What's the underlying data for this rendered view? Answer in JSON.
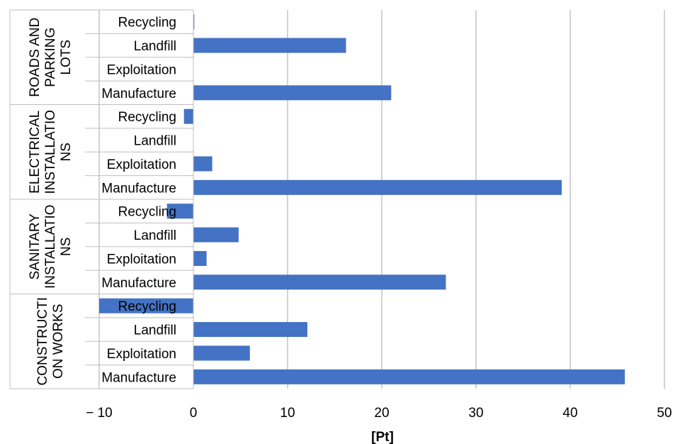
{
  "chart_data": {
    "type": "bar",
    "orientation": "horizontal",
    "xlabel": "[Pt]",
    "ylabel": "",
    "xlim": [
      -10,
      50
    ],
    "x_ticks": [
      -10,
      0,
      10,
      20,
      30,
      40,
      50
    ],
    "x_tick_labels": [
      "− 10",
      "0",
      "10",
      "20",
      "30",
      "40",
      "50"
    ],
    "grid": "vertical",
    "legend": "none",
    "bar_color": "#4472C4",
    "groups": [
      {
        "label_lines": [
          "ROADS AND",
          "PARKING",
          "LOTS"
        ],
        "bars": [
          {
            "category": "Recycling",
            "value": 0.1
          },
          {
            "category": "Landfill",
            "value": 16.2
          },
          {
            "category": "Exploitation",
            "value": 0
          },
          {
            "category": "Manufacture",
            "value": 21.0
          }
        ]
      },
      {
        "label_lines": [
          "ELECTRICAL",
          "INSTALLATIO",
          "NS"
        ],
        "bars": [
          {
            "category": "Recycling",
            "value": -1.0
          },
          {
            "category": "Landfill",
            "value": 0
          },
          {
            "category": "Exploitation",
            "value": 2.0
          },
          {
            "category": "Manufacture",
            "value": 39.1
          }
        ]
      },
      {
        "label_lines": [
          "SANITARY",
          "INSTALLATIO",
          "NS"
        ],
        "bars": [
          {
            "category": "Recycling",
            "value": -2.8
          },
          {
            "category": "Landfill",
            "value": 4.8
          },
          {
            "category": "Exploitation",
            "value": 1.4
          },
          {
            "category": "Manufacture",
            "value": 26.8
          }
        ]
      },
      {
        "label_lines": [
          "CONSTRUCTI",
          "ON WORKS"
        ],
        "bars": [
          {
            "category": "Recycling",
            "value": -10.0
          },
          {
            "category": "Landfill",
            "value": 12.1
          },
          {
            "category": "Exploitation",
            "value": 6.0
          },
          {
            "category": "Manufacture",
            "value": 45.8
          }
        ]
      }
    ]
  }
}
